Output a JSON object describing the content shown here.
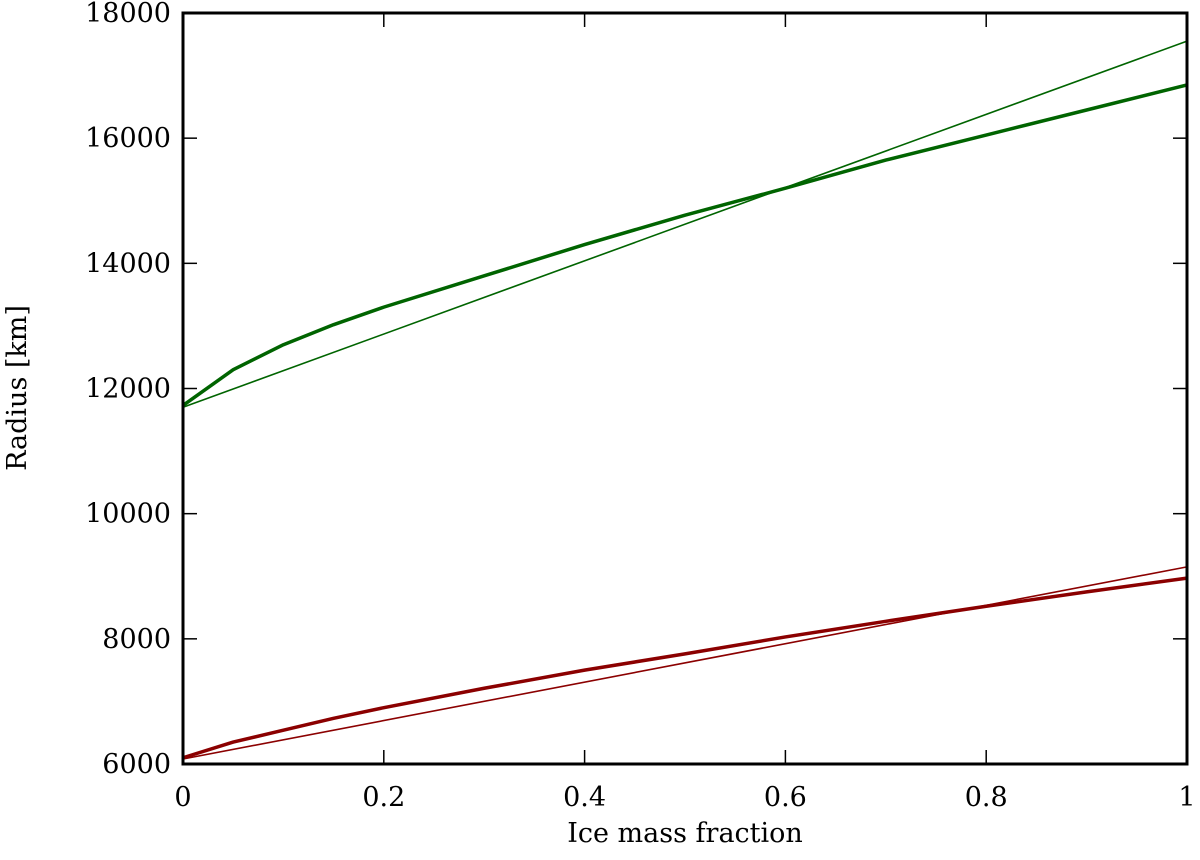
{
  "chart_data": {
    "type": "line",
    "xlabel": "Ice mass fraction",
    "ylabel": "Radius [km]",
    "xlim": [
      0,
      1
    ],
    "ylim": [
      6000,
      18000
    ],
    "xticks": [
      0,
      0.2,
      0.4,
      0.6,
      0.8,
      1
    ],
    "yticks": [
      6000,
      8000,
      10000,
      12000,
      14000,
      16000,
      18000
    ],
    "series": [
      {
        "color": "#006400",
        "width": 3.5,
        "x": [
          0,
          0.05,
          0.1,
          0.15,
          0.2,
          0.3,
          0.4,
          0.5,
          0.6,
          0.7,
          0.8,
          0.9,
          1
        ],
        "values": [
          11730,
          12300,
          12700,
          13020,
          13300,
          13800,
          14300,
          14770,
          15200,
          15650,
          16050,
          16450,
          16850
        ]
      },
      {
        "color": "#006400",
        "width": 1.6,
        "x": [
          0,
          1
        ],
        "values": [
          11700,
          17550
        ]
      },
      {
        "color": "#8b0000",
        "width": 3.5,
        "x": [
          0,
          0.05,
          0.1,
          0.15,
          0.2,
          0.3,
          0.4,
          0.5,
          0.6,
          0.7,
          0.8,
          0.9,
          1
        ],
        "values": [
          6100,
          6350,
          6540,
          6730,
          6900,
          7210,
          7500,
          7760,
          8030,
          8280,
          8520,
          8750,
          8970
        ]
      },
      {
        "color": "#8b0000",
        "width": 1.6,
        "x": [
          0,
          1
        ],
        "values": [
          6080,
          9150
        ]
      }
    ]
  }
}
